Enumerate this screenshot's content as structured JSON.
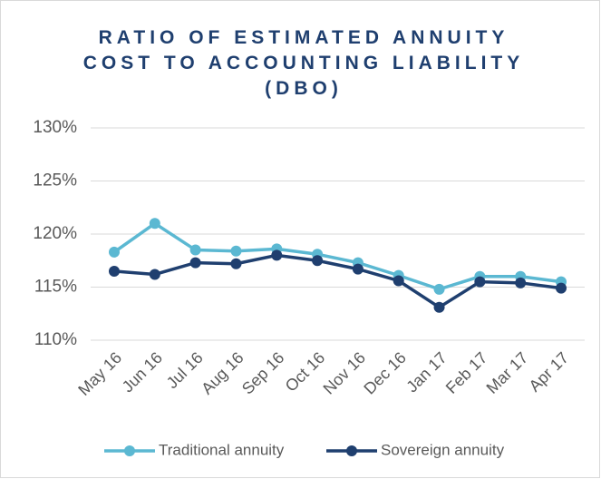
{
  "chart_data": {
    "type": "line",
    "title": "RATIO OF ESTIMATED ANNUITY COST TO ACCOUNTING LIABILITY (DBO)",
    "categories": [
      "May 16",
      "Jun 16",
      "Jul 16",
      "Aug 16",
      "Sep 16",
      "Oct 16",
      "Nov 16",
      "Dec 16",
      "Jan 17",
      "Feb 17",
      "Mar 17",
      "Apr 17"
    ],
    "series": [
      {
        "name": "Traditional annuity",
        "color": "#5bb8d2",
        "values": [
          118.3,
          121.0,
          118.5,
          118.4,
          118.6,
          118.1,
          117.3,
          116.1,
          114.8,
          116.0,
          116.0,
          115.5
        ]
      },
      {
        "name": "Sovereign annuity",
        "color": "#1f3f6f",
        "values": [
          116.5,
          116.2,
          117.3,
          117.2,
          118.0,
          117.5,
          116.7,
          115.6,
          113.1,
          115.5,
          115.4,
          114.9
        ]
      }
    ],
    "ylim": [
      110,
      130
    ],
    "yticks": [
      {
        "value": 110,
        "label": "110%"
      },
      {
        "value": 115,
        "label": "115%"
      },
      {
        "value": 120,
        "label": "120%"
      },
      {
        "value": 125,
        "label": "125%"
      },
      {
        "value": 130,
        "label": "130%"
      }
    ],
    "grid": true,
    "legend": "bottom"
  }
}
